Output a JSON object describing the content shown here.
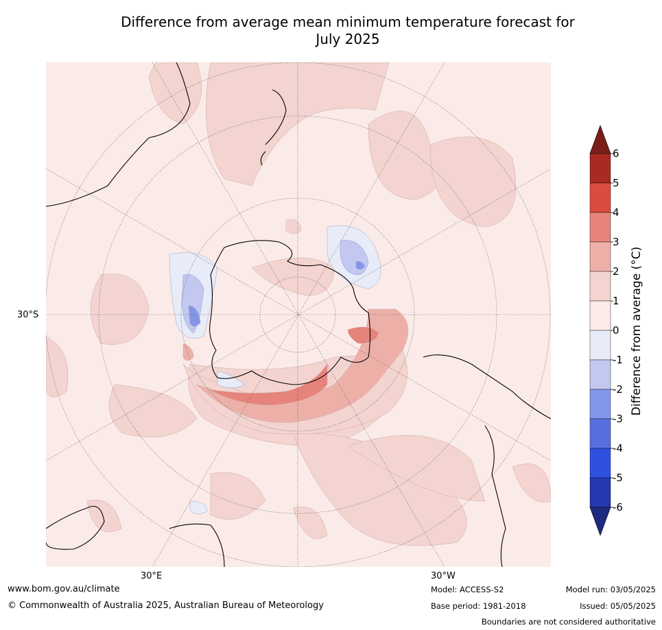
{
  "title_line1": "Difference from average mean minimum temperature forecast for",
  "title_line2": "July 2025",
  "map": {
    "projection": "south polar stereographic",
    "lat_label": "30°S",
    "lon_labels": [
      "30°E",
      "30°W"
    ],
    "colors": {
      "land_outline": "#000000",
      "graticule": "#555555",
      "background": "#fbebe8"
    }
  },
  "colorbar": {
    "label": "Difference from average (°C)",
    "ticks": [
      "6",
      "5",
      "4",
      "3",
      "2",
      "1",
      "0",
      "-1",
      "-2",
      "-3",
      "-4",
      "-5",
      "-6"
    ],
    "colors": [
      "#a92a22",
      "#d94c3f",
      "#e6837b",
      "#edb0a8",
      "#f4d4d0",
      "#fbebe8",
      "#e8ecf8",
      "#c2c8f0",
      "#8496e8",
      "#5670e0",
      "#3050e0",
      "#2438b0"
    ],
    "extend_max_color": "#7a1e18",
    "extend_min_color": "#1e2a80"
  },
  "footer": {
    "website": "www.bom.gov.au/climate",
    "copyright": "© Commonwealth of Australia 2025, Australian Bureau of Meteorology",
    "model": "Model: ACCESS-S2",
    "base_period": "Base period: 1981-2018",
    "model_run": "Model run: 03/05/2025",
    "issued": "Issued: 05/05/2025",
    "disclaimer": "Boundaries are not considered authoritative"
  }
}
